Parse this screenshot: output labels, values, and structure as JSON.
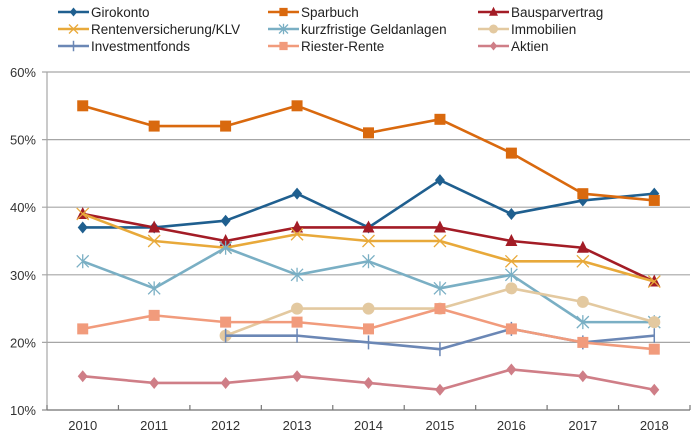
{
  "chart_data": {
    "type": "line",
    "title": "",
    "xlabel": "",
    "ylabel": "",
    "x": [
      "2010",
      "2011",
      "2012",
      "2013",
      "2014",
      "2015",
      "2016",
      "2017",
      "2018"
    ],
    "ylim": [
      10,
      60
    ],
    "yticks": [
      10,
      20,
      30,
      40,
      50,
      60
    ],
    "ytick_labels": [
      "10%",
      "20%",
      "30%",
      "40%",
      "50%",
      "60%"
    ],
    "grid": "horizontal",
    "legend_position": "top",
    "series": [
      {
        "name": "Girokonto",
        "color": "#1F5F8F",
        "marker": "diamond",
        "values": [
          37,
          37,
          38,
          42,
          37,
          44,
          39,
          41,
          42
        ]
      },
      {
        "name": "Sparbuch",
        "color": "#D9690E",
        "marker": "square",
        "values": [
          55,
          52,
          52,
          55,
          51,
          53,
          48,
          42,
          41
        ]
      },
      {
        "name": "Bausparvertrag",
        "color": "#A31C26",
        "marker": "triangle",
        "values": [
          39,
          37,
          35,
          37,
          37,
          37,
          35,
          34,
          29
        ]
      },
      {
        "name": "Rentenversicherung/KLV",
        "color": "#E8A93A",
        "marker": "x",
        "values": [
          39,
          35,
          34,
          36,
          35,
          35,
          32,
          32,
          29
        ]
      },
      {
        "name": "kurzfristige Geldanlagen",
        "color": "#7AAFC4",
        "marker": "star",
        "values": [
          32,
          28,
          34,
          30,
          32,
          28,
          30,
          23,
          23
        ]
      },
      {
        "name": "Immobilien",
        "color": "#E3C9A0",
        "marker": "circle",
        "values": [
          null,
          null,
          21,
          25,
          25,
          25,
          28,
          26,
          23
        ]
      },
      {
        "name": "Investmentfonds",
        "color": "#6B87B5",
        "marker": "plus",
        "values": [
          null,
          null,
          21,
          21,
          20,
          19,
          22,
          20,
          21
        ]
      },
      {
        "name": "Riester-Rente",
        "color": "#F19B7C",
        "marker": "square",
        "values": [
          22,
          24,
          23,
          23,
          22,
          25,
          22,
          20,
          19
        ]
      },
      {
        "name": "Aktien",
        "color": "#CF7E87",
        "marker": "diamond",
        "values": [
          15,
          14,
          14,
          15,
          14,
          13,
          16,
          15,
          13
        ]
      }
    ]
  }
}
